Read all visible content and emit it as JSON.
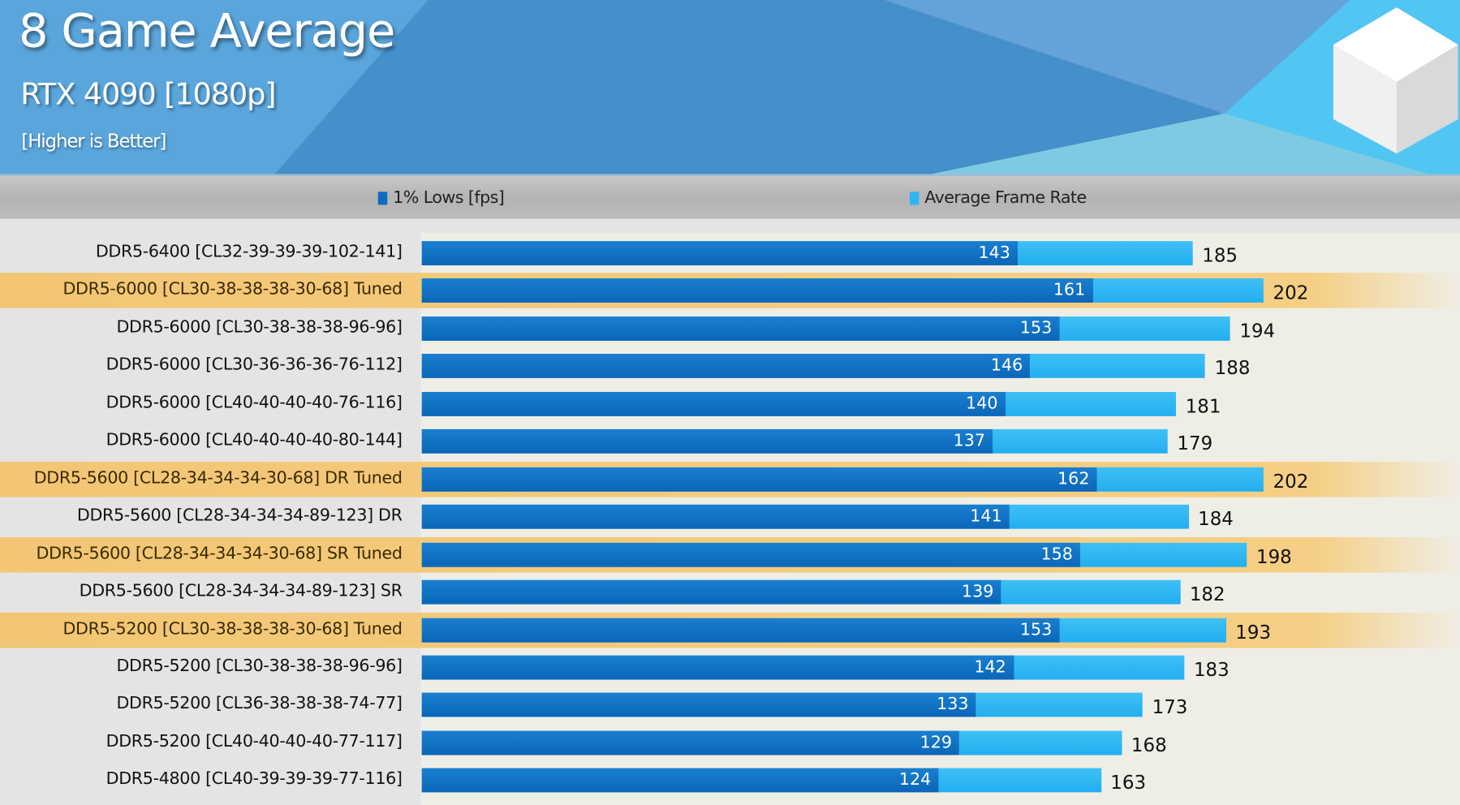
{
  "chart_data": {
    "type": "bar",
    "orientation": "horizontal",
    "title": "8 Game Average",
    "subtitle": "RTX 4090 [1080p]",
    "note": "[Higher is Better]",
    "legend": [
      "1% Lows [fps]",
      "Average Frame Rate"
    ],
    "legend_placement": "top",
    "colors": {
      "lows": "#0d6cbf",
      "avg": "#2db5f2",
      "tuned_highlight": "#f3c978"
    },
    "categories": [
      "DDR5-6400 [CL32-39-39-39-102-141]",
      "DDR5-6000 [CL30-38-38-38-30-68] Tuned",
      "DDR5-6000 [CL30-38-38-38-96-96]",
      "DDR5-6000 [CL30-36-36-36-76-112]",
      "DDR5-6000 [CL40-40-40-40-76-116]",
      "DDR5-6000 [CL40-40-40-40-80-144]",
      "DDR5-5600 [CL28-34-34-34-30-68] DR Tuned",
      "DDR5-5600 [CL28-34-34-34-89-123] DR",
      "DDR5-5600 [CL28-34-34-34-30-68] SR Tuned",
      "DDR5-5600 [CL28-34-34-34-89-123] SR",
      "DDR5-5200 [CL30-38-38-38-30-68] Tuned",
      "DDR5-5200 [CL30-38-38-38-96-96]",
      "DDR5-5200 [CL36-38-38-38-74-77]",
      "DDR5-5200 [CL40-40-40-40-77-117]",
      "DDR5-4800 [CL40-39-39-39-77-116]"
    ],
    "tuned": [
      false,
      true,
      false,
      false,
      false,
      false,
      true,
      false,
      true,
      false,
      true,
      false,
      false,
      false,
      false
    ],
    "series": [
      {
        "name": "1% Lows [fps]",
        "values": [
          143,
          161,
          153,
          146,
          140,
          137,
          162,
          141,
          158,
          139,
          153,
          142,
          133,
          129,
          124
        ]
      },
      {
        "name": "Average Frame Rate",
        "values": [
          185,
          202,
          194,
          188,
          181,
          179,
          202,
          184,
          198,
          182,
          193,
          183,
          173,
          168,
          163
        ]
      }
    ],
    "xlim": [
      0,
      249
    ]
  }
}
